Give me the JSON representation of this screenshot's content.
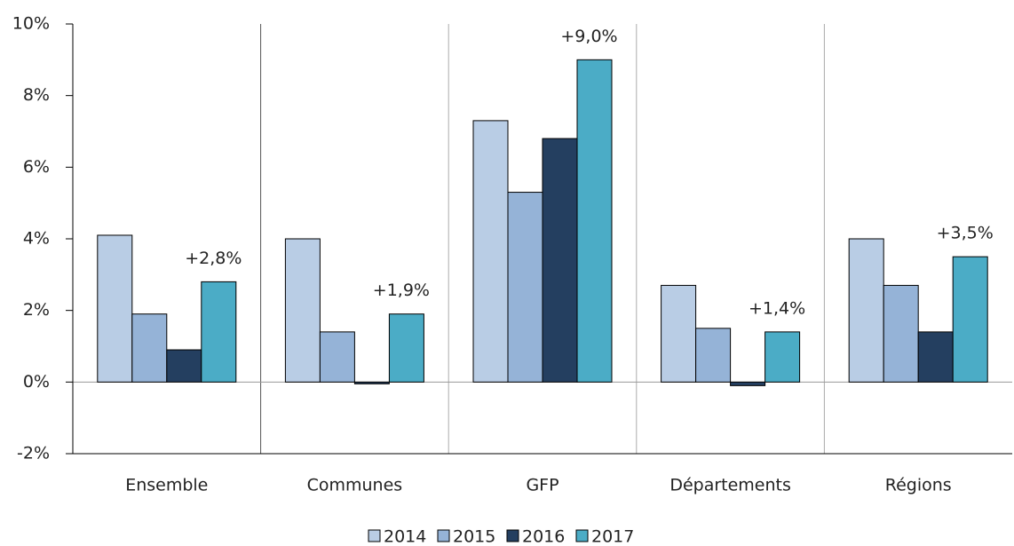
{
  "chart_data": {
    "type": "bar",
    "categories": [
      "Ensemble",
      "Communes",
      "GFP",
      "Départements",
      "Régions"
    ],
    "series": [
      {
        "name": "2014",
        "color": "#b9cde5",
        "values": [
          4.1,
          4.0,
          7.3,
          2.7,
          4.0
        ]
      },
      {
        "name": "2015",
        "color": "#95b3d7",
        "values": [
          1.9,
          1.4,
          5.3,
          1.5,
          2.7
        ]
      },
      {
        "name": "2016",
        "color": "#243f60",
        "values": [
          0.9,
          -0.05,
          6.8,
          -0.1,
          1.4
        ]
      },
      {
        "name": "2017",
        "color": "#4bacc6",
        "values": [
          2.8,
          1.9,
          9.0,
          1.4,
          3.5
        ],
        "value_labels": [
          "+2,8%",
          "+1,9%",
          "+9,0%",
          "+1,4%",
          "+3,5%"
        ]
      }
    ],
    "ylim": [
      -2,
      10
    ],
    "yticks": [
      {
        "value": -2,
        "label": "-2%"
      },
      {
        "value": 0,
        "label": "0%"
      },
      {
        "value": 2,
        "label": "2%"
      },
      {
        "value": 4,
        "label": "4%"
      },
      {
        "value": 6,
        "label": "6%"
      },
      {
        "value": 8,
        "label": "8%"
      },
      {
        "value": 10,
        "label": "10%"
      }
    ],
    "legend": "bottom"
  }
}
